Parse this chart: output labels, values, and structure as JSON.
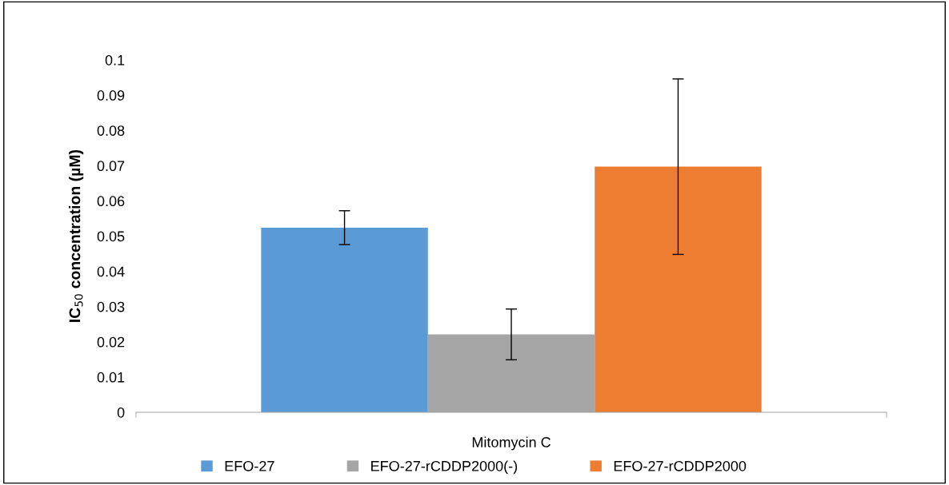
{
  "chart_data": {
    "type": "bar",
    "ylabel": "IC$_{50}$ concentration (µM)",
    "categories": [
      "Mitomycin C"
    ],
    "series": [
      {
        "name": "EFO-27",
        "color": "#5b9bd5",
        "values": [
          0.0524
        ],
        "errors": [
          0.0048
        ]
      },
      {
        "name": "EFO-27-rCDDP2000(-)",
        "color": "#a5a5a5",
        "values": [
          0.0221
        ],
        "errors": [
          0.0072
        ]
      },
      {
        "name": "EFO-27-rCDDP2000",
        "color": "#ed7d31",
        "values": [
          0.0697
        ],
        "errors": [
          0.0249
        ]
      }
    ],
    "ylim": [
      0,
      0.1
    ],
    "yticks": [
      {
        "value": 0,
        "label": "0"
      },
      0.01,
      0.02,
      0.03,
      0.04,
      0.05,
      0.06,
      0.07,
      0.08,
      0.09,
      0.1
    ],
    "grid": false,
    "legend": "bottom"
  }
}
